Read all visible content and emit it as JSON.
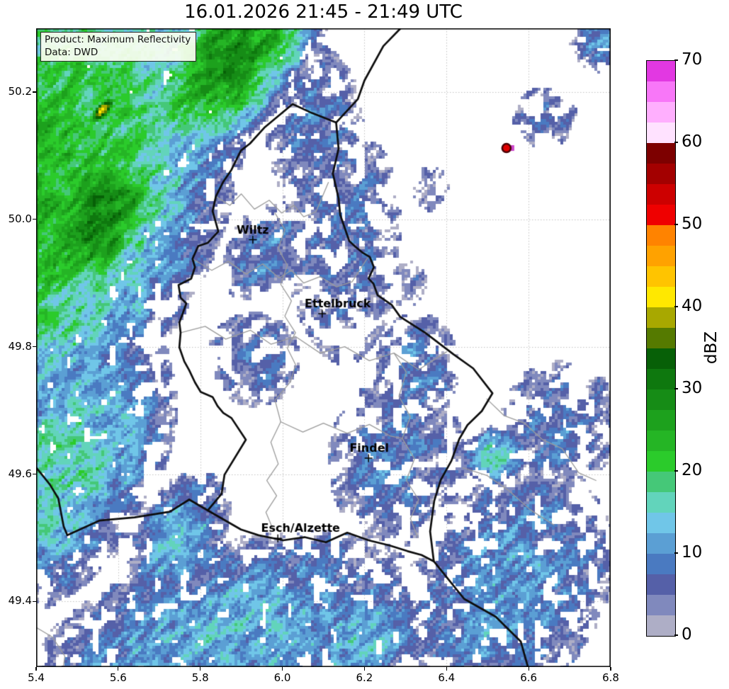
{
  "title": "16.01.2026 21:45 - 21:49 UTC",
  "annotation": {
    "product_line": "Product: Maximum Reflectivity",
    "data_line": "Data: DWD"
  },
  "axes": {
    "lon_min": 5.4,
    "lon_max": 6.8,
    "lat_min": 49.297,
    "lat_max": 50.3,
    "x_tick_values": [
      5.4,
      5.6,
      5.8,
      6.0,
      6.2,
      6.4,
      6.6,
      6.8
    ],
    "x_tick_labels": [
      "5.4",
      "5.6",
      "5.8",
      "6.0",
      "6.2",
      "6.4",
      "6.6",
      "6.8"
    ],
    "y_tick_values": [
      50.2,
      50.0,
      49.8,
      49.6,
      49.4
    ],
    "y_tick_labels": [
      "50.2",
      "50.0",
      "49.8",
      "49.6",
      "49.4"
    ],
    "grid_color": "#c3c3c3"
  },
  "colorbar": {
    "label": "dBZ",
    "tick_values": [
      70,
      60,
      50,
      40,
      30,
      20,
      10,
      0
    ],
    "tick_labels": [
      "70",
      "60",
      "50",
      "40",
      "30",
      "20",
      "10",
      "0"
    ],
    "band_size_dbz": 2.5,
    "colors_bottom_to_top": [
      "#aeaec6",
      "#8089bd",
      "#5560a8",
      "#4a7ac1",
      "#5b9fd4",
      "#70c6e8",
      "#62d4bb",
      "#45c878",
      "#2bcb2b",
      "#25b525",
      "#1da11d",
      "#168c16",
      "#0e780e",
      "#076007",
      "#557a00",
      "#a8a800",
      "#ffe800",
      "#ffc400",
      "#ffa200",
      "#ff8300",
      "#ef0000",
      "#cd0000",
      "#a30000",
      "#7d0000",
      "#ffe2ff",
      "#ffaffe",
      "#f877f8",
      "#e238e2"
    ]
  },
  "cities": [
    {
      "name": "Wiltz",
      "lon": 5.928,
      "lat": 49.968,
      "label_dx": 0
    },
    {
      "name": "Ettelbruck",
      "lon": 6.097,
      "lat": 49.852,
      "label_dx": 22
    },
    {
      "name": "Findel",
      "lon": 6.21,
      "lat": 49.625,
      "label_dx": 1
    },
    {
      "name": "Esch/Alzette",
      "lon": 5.989,
      "lat": 49.499,
      "label_dx": 32
    }
  ],
  "chart_data": {
    "type": "heatmap",
    "title": "16.01.2026 21:45 - 21:49 UTC",
    "xlabel": "",
    "ylabel": "",
    "xlim": [
      5.4,
      6.8
    ],
    "ylim": [
      49.297,
      50.3
    ],
    "grid": true,
    "legend_position": "right-colorbar",
    "units": "dBZ",
    "precip_regions": [
      {
        "lon": 5.38,
        "lat": 50.05,
        "a": 0.62,
        "b": 0.42,
        "rot": 32,
        "peak": 24
      },
      {
        "lon": 5.88,
        "lat": 50.26,
        "a": 0.3,
        "b": 0.14,
        "rot": 32,
        "peak": 28
      },
      {
        "lon": 5.55,
        "lat": 50.0,
        "a": 0.22,
        "b": 0.13,
        "rot": 32,
        "peak": 30
      },
      {
        "lon": 5.56,
        "lat": 50.17,
        "a": 0.05,
        "b": 0.018,
        "rot": 32,
        "peak": 40
      },
      {
        "lon": 5.45,
        "lat": 49.62,
        "a": 0.35,
        "b": 0.22,
        "rot": 32,
        "peak": 16
      },
      {
        "lon": 5.85,
        "lat": 49.33,
        "a": 0.55,
        "b": 0.18,
        "rot": 10,
        "peak": 13
      },
      {
        "lon": 6.55,
        "lat": 49.42,
        "a": 0.3,
        "b": 0.2,
        "rot": 20,
        "peak": 11
      },
      {
        "lon": 6.52,
        "lat": 49.63,
        "a": 0.09,
        "b": 0.05,
        "rot": 0,
        "peak": 15
      },
      {
        "lon": 6.15,
        "lat": 49.97,
        "a": 0.17,
        "b": 0.24,
        "rot": 0,
        "peak": 7
      },
      {
        "lon": 6.08,
        "lat": 50.14,
        "a": 0.14,
        "b": 0.16,
        "rot": 0,
        "peak": 8
      },
      {
        "lon": 6.28,
        "lat": 49.62,
        "a": 0.2,
        "b": 0.16,
        "rot": 0,
        "peak": 8
      },
      {
        "lon": 5.93,
        "lat": 49.78,
        "a": 0.14,
        "b": 0.09,
        "rot": 0,
        "peak": 7
      },
      {
        "lon": 5.95,
        "lat": 49.95,
        "a": 0.12,
        "b": 0.08,
        "rot": 32,
        "peak": 9
      },
      {
        "lon": 6.78,
        "lat": 50.28,
        "a": 0.09,
        "b": 0.06,
        "rot": 0,
        "peak": 10
      },
      {
        "lon": 6.64,
        "lat": 50.16,
        "a": 0.1,
        "b": 0.06,
        "rot": 0,
        "peak": 6
      },
      {
        "lon": 6.36,
        "lat": 50.05,
        "a": 0.06,
        "b": 0.05,
        "rot": 0,
        "peak": 5
      },
      {
        "lon": 6.3,
        "lat": 49.9,
        "a": 0.07,
        "b": 0.05,
        "rot": 0,
        "peak": 5
      },
      {
        "lon": 5.75,
        "lat": 49.5,
        "a": 0.15,
        "b": 0.1,
        "rot": 32,
        "peak": 13
      },
      {
        "lon": 6.33,
        "lat": 49.77,
        "a": 0.12,
        "b": 0.1,
        "rot": 0,
        "peak": 8
      },
      {
        "lon": 6.68,
        "lat": 49.68,
        "a": 0.18,
        "b": 0.12,
        "rot": 0,
        "peak": 7
      },
      {
        "lon": 6.2,
        "lat": 49.34,
        "a": 0.18,
        "b": 0.08,
        "rot": 10,
        "peak": 14
      }
    ],
    "point_echo": {
      "lon": 6.546,
      "lat": 50.112,
      "dbz_estimate": 55,
      "core_color": "#e00000",
      "ring_color": "#4a0005",
      "halo_color": "#cc44cc"
    },
    "borders": {
      "country_line_color": "#0d0d0d",
      "luxembourg": [
        [
          5.956,
          50.144
        ],
        [
          6.025,
          50.181
        ],
        [
          6.072,
          50.167
        ],
        [
          6.131,
          50.152
        ],
        [
          6.137,
          50.111
        ],
        [
          6.123,
          50.072
        ],
        [
          6.137,
          50.033
        ],
        [
          6.141,
          50.007
        ],
        [
          6.163,
          49.966
        ],
        [
          6.178,
          49.957
        ],
        [
          6.197,
          49.947
        ],
        [
          6.213,
          49.941
        ],
        [
          6.223,
          49.925
        ],
        [
          6.21,
          49.907
        ],
        [
          6.222,
          49.899
        ],
        [
          6.232,
          49.881
        ],
        [
          6.266,
          49.866
        ],
        [
          6.287,
          49.847
        ],
        [
          6.348,
          49.822
        ],
        [
          6.417,
          49.788
        ],
        [
          6.465,
          49.766
        ],
        [
          6.512,
          49.727
        ],
        [
          6.486,
          49.699
        ],
        [
          6.451,
          49.677
        ],
        [
          6.431,
          49.655
        ],
        [
          6.412,
          49.621
        ],
        [
          6.386,
          49.591
        ],
        [
          6.37,
          49.558
        ],
        [
          6.36,
          49.51
        ],
        [
          6.369,
          49.463
        ],
        [
          6.339,
          49.473
        ],
        [
          6.305,
          49.479
        ],
        [
          6.261,
          49.488
        ],
        [
          6.21,
          49.496
        ],
        [
          6.158,
          49.508
        ],
        [
          6.106,
          49.493
        ],
        [
          6.054,
          49.501
        ],
        [
          6.002,
          49.496
        ],
        [
          5.942,
          49.504
        ],
        [
          5.899,
          49.513
        ],
        [
          5.818,
          49.543
        ],
        [
          5.852,
          49.569
        ],
        [
          5.859,
          49.599
        ],
        [
          5.911,
          49.654
        ],
        [
          5.876,
          49.688
        ],
        [
          5.856,
          49.696
        ],
        [
          5.842,
          49.707
        ],
        [
          5.83,
          49.721
        ],
        [
          5.801,
          49.729
        ],
        [
          5.787,
          49.744
        ],
        [
          5.773,
          49.763
        ],
        [
          5.761,
          49.777
        ],
        [
          5.749,
          49.799
        ],
        [
          5.752,
          49.822
        ],
        [
          5.749,
          49.838
        ],
        [
          5.757,
          49.852
        ],
        [
          5.766,
          49.868
        ],
        [
          5.752,
          49.877
        ],
        [
          5.747,
          49.897
        ],
        [
          5.778,
          49.907
        ],
        [
          5.787,
          49.925
        ],
        [
          5.781,
          49.938
        ],
        [
          5.795,
          49.958
        ],
        [
          5.818,
          49.963
        ],
        [
          5.844,
          49.981
        ],
        [
          5.83,
          50.013
        ],
        [
          5.838,
          50.036
        ],
        [
          5.856,
          50.059
        ],
        [
          5.876,
          50.078
        ],
        [
          5.899,
          50.108
        ],
        [
          5.921,
          50.119
        ],
        [
          5.956,
          50.144
        ]
      ],
      "extra": [
        [
          [
            6.131,
            50.152
          ],
          [
            6.184,
            50.189
          ],
          [
            6.2,
            50.218
          ],
          [
            6.246,
            50.272
          ],
          [
            6.288,
            50.3
          ]
        ],
        [
          [
            5.398,
            49.612
          ],
          [
            5.433,
            49.584
          ],
          [
            5.454,
            49.562
          ],
          [
            5.467,
            49.518
          ],
          [
            5.476,
            49.504
          ],
          [
            5.554,
            49.527
          ],
          [
            5.64,
            49.532
          ],
          [
            5.726,
            49.541
          ],
          [
            5.773,
            49.56
          ],
          [
            5.818,
            49.543
          ]
        ],
        [
          [
            6.369,
            49.463
          ],
          [
            6.443,
            49.404
          ],
          [
            6.52,
            49.376
          ],
          [
            6.581,
            49.337
          ],
          [
            6.598,
            49.298
          ]
        ]
      ]
    },
    "district_line_color": "#9b9b9b",
    "district_lines": [
      [
        [
          5.838,
          50.036
        ],
        [
          5.872,
          50.022
        ],
        [
          5.9,
          50.04
        ],
        [
          5.932,
          50.016
        ],
        [
          5.968,
          50.03
        ],
        [
          5.998,
          50.01
        ],
        [
          6.028,
          50.022
        ],
        [
          6.052,
          50.004
        ],
        [
          6.082,
          50.012
        ],
        [
          6.112,
          50.058
        ]
      ],
      [
        [
          5.781,
          49.938
        ],
        [
          5.828,
          49.92
        ],
        [
          5.868,
          49.934
        ],
        [
          5.912,
          49.914
        ],
        [
          5.952,
          49.93
        ],
        [
          5.992,
          49.908
        ],
        [
          6.022,
          49.92
        ],
        [
          6.052,
          49.9
        ],
        [
          6.092,
          49.91
        ],
        [
          6.132,
          49.894
        ],
        [
          6.17,
          49.902
        ],
        [
          6.208,
          49.94
        ]
      ],
      [
        [
          5.982,
          50.01
        ],
        [
          6.006,
          49.984
        ],
        [
          5.99,
          49.954
        ],
        [
          6.012,
          49.928
        ],
        [
          5.996,
          49.898
        ],
        [
          6.022,
          49.872
        ],
        [
          6.006,
          49.848
        ],
        [
          6.032,
          49.822
        ],
        [
          6.012,
          49.798
        ],
        [
          6.032,
          49.772
        ],
        [
          6.02,
          49.745
        ]
      ],
      [
        [
          5.752,
          49.822
        ],
        [
          5.812,
          49.832
        ],
        [
          5.862,
          49.812
        ],
        [
          5.922,
          49.826
        ],
        [
          5.972,
          49.804
        ],
        [
          6.032,
          49.816
        ],
        [
          6.092,
          49.79
        ],
        [
          6.152,
          49.8
        ],
        [
          6.212,
          49.778
        ],
        [
          6.272,
          49.79
        ],
        [
          6.332,
          49.764
        ],
        [
          6.4,
          49.792
        ]
      ],
      [
        [
          6.02,
          49.745
        ],
        [
          5.982,
          49.716
        ],
        [
          5.996,
          49.682
        ],
        [
          5.972,
          49.65
        ],
        [
          5.99,
          49.616
        ],
        [
          5.962,
          49.59
        ],
        [
          5.986,
          49.566
        ],
        [
          5.96,
          49.54
        ],
        [
          5.978,
          49.512
        ]
      ],
      [
        [
          6.272,
          49.79
        ],
        [
          6.302,
          49.76
        ],
        [
          6.284,
          49.722
        ],
        [
          6.312,
          49.69
        ],
        [
          6.292,
          49.656
        ],
        [
          6.322,
          49.624
        ],
        [
          6.302,
          49.59
        ],
        [
          6.332,
          49.56
        ],
        [
          6.312,
          49.53
        ],
        [
          6.33,
          49.5
        ]
      ],
      [
        [
          5.996,
          49.682
        ],
        [
          6.05,
          49.666
        ],
        [
          6.1,
          49.68
        ],
        [
          6.158,
          49.664
        ],
        [
          6.212,
          49.678
        ],
        [
          6.262,
          49.66
        ],
        [
          6.292,
          49.656
        ]
      ],
      [
        [
          6.498,
          49.718
        ],
        [
          6.54,
          49.692
        ],
        [
          6.59,
          49.68
        ],
        [
          6.634,
          49.654
        ],
        [
          6.682,
          49.64
        ],
        [
          6.722,
          49.602
        ],
        [
          6.764,
          49.59
        ]
      ],
      [
        [
          6.44,
          49.61
        ],
        [
          6.498,
          49.598
        ],
        [
          6.552,
          49.574
        ],
        [
          6.604,
          49.544
        ],
        [
          6.662,
          49.52
        ]
      ],
      [
        [
          5.398,
          49.36
        ],
        [
          5.44,
          49.344
        ],
        [
          5.47,
          49.314
        ],
        [
          5.462,
          49.278
        ]
      ]
    ]
  }
}
